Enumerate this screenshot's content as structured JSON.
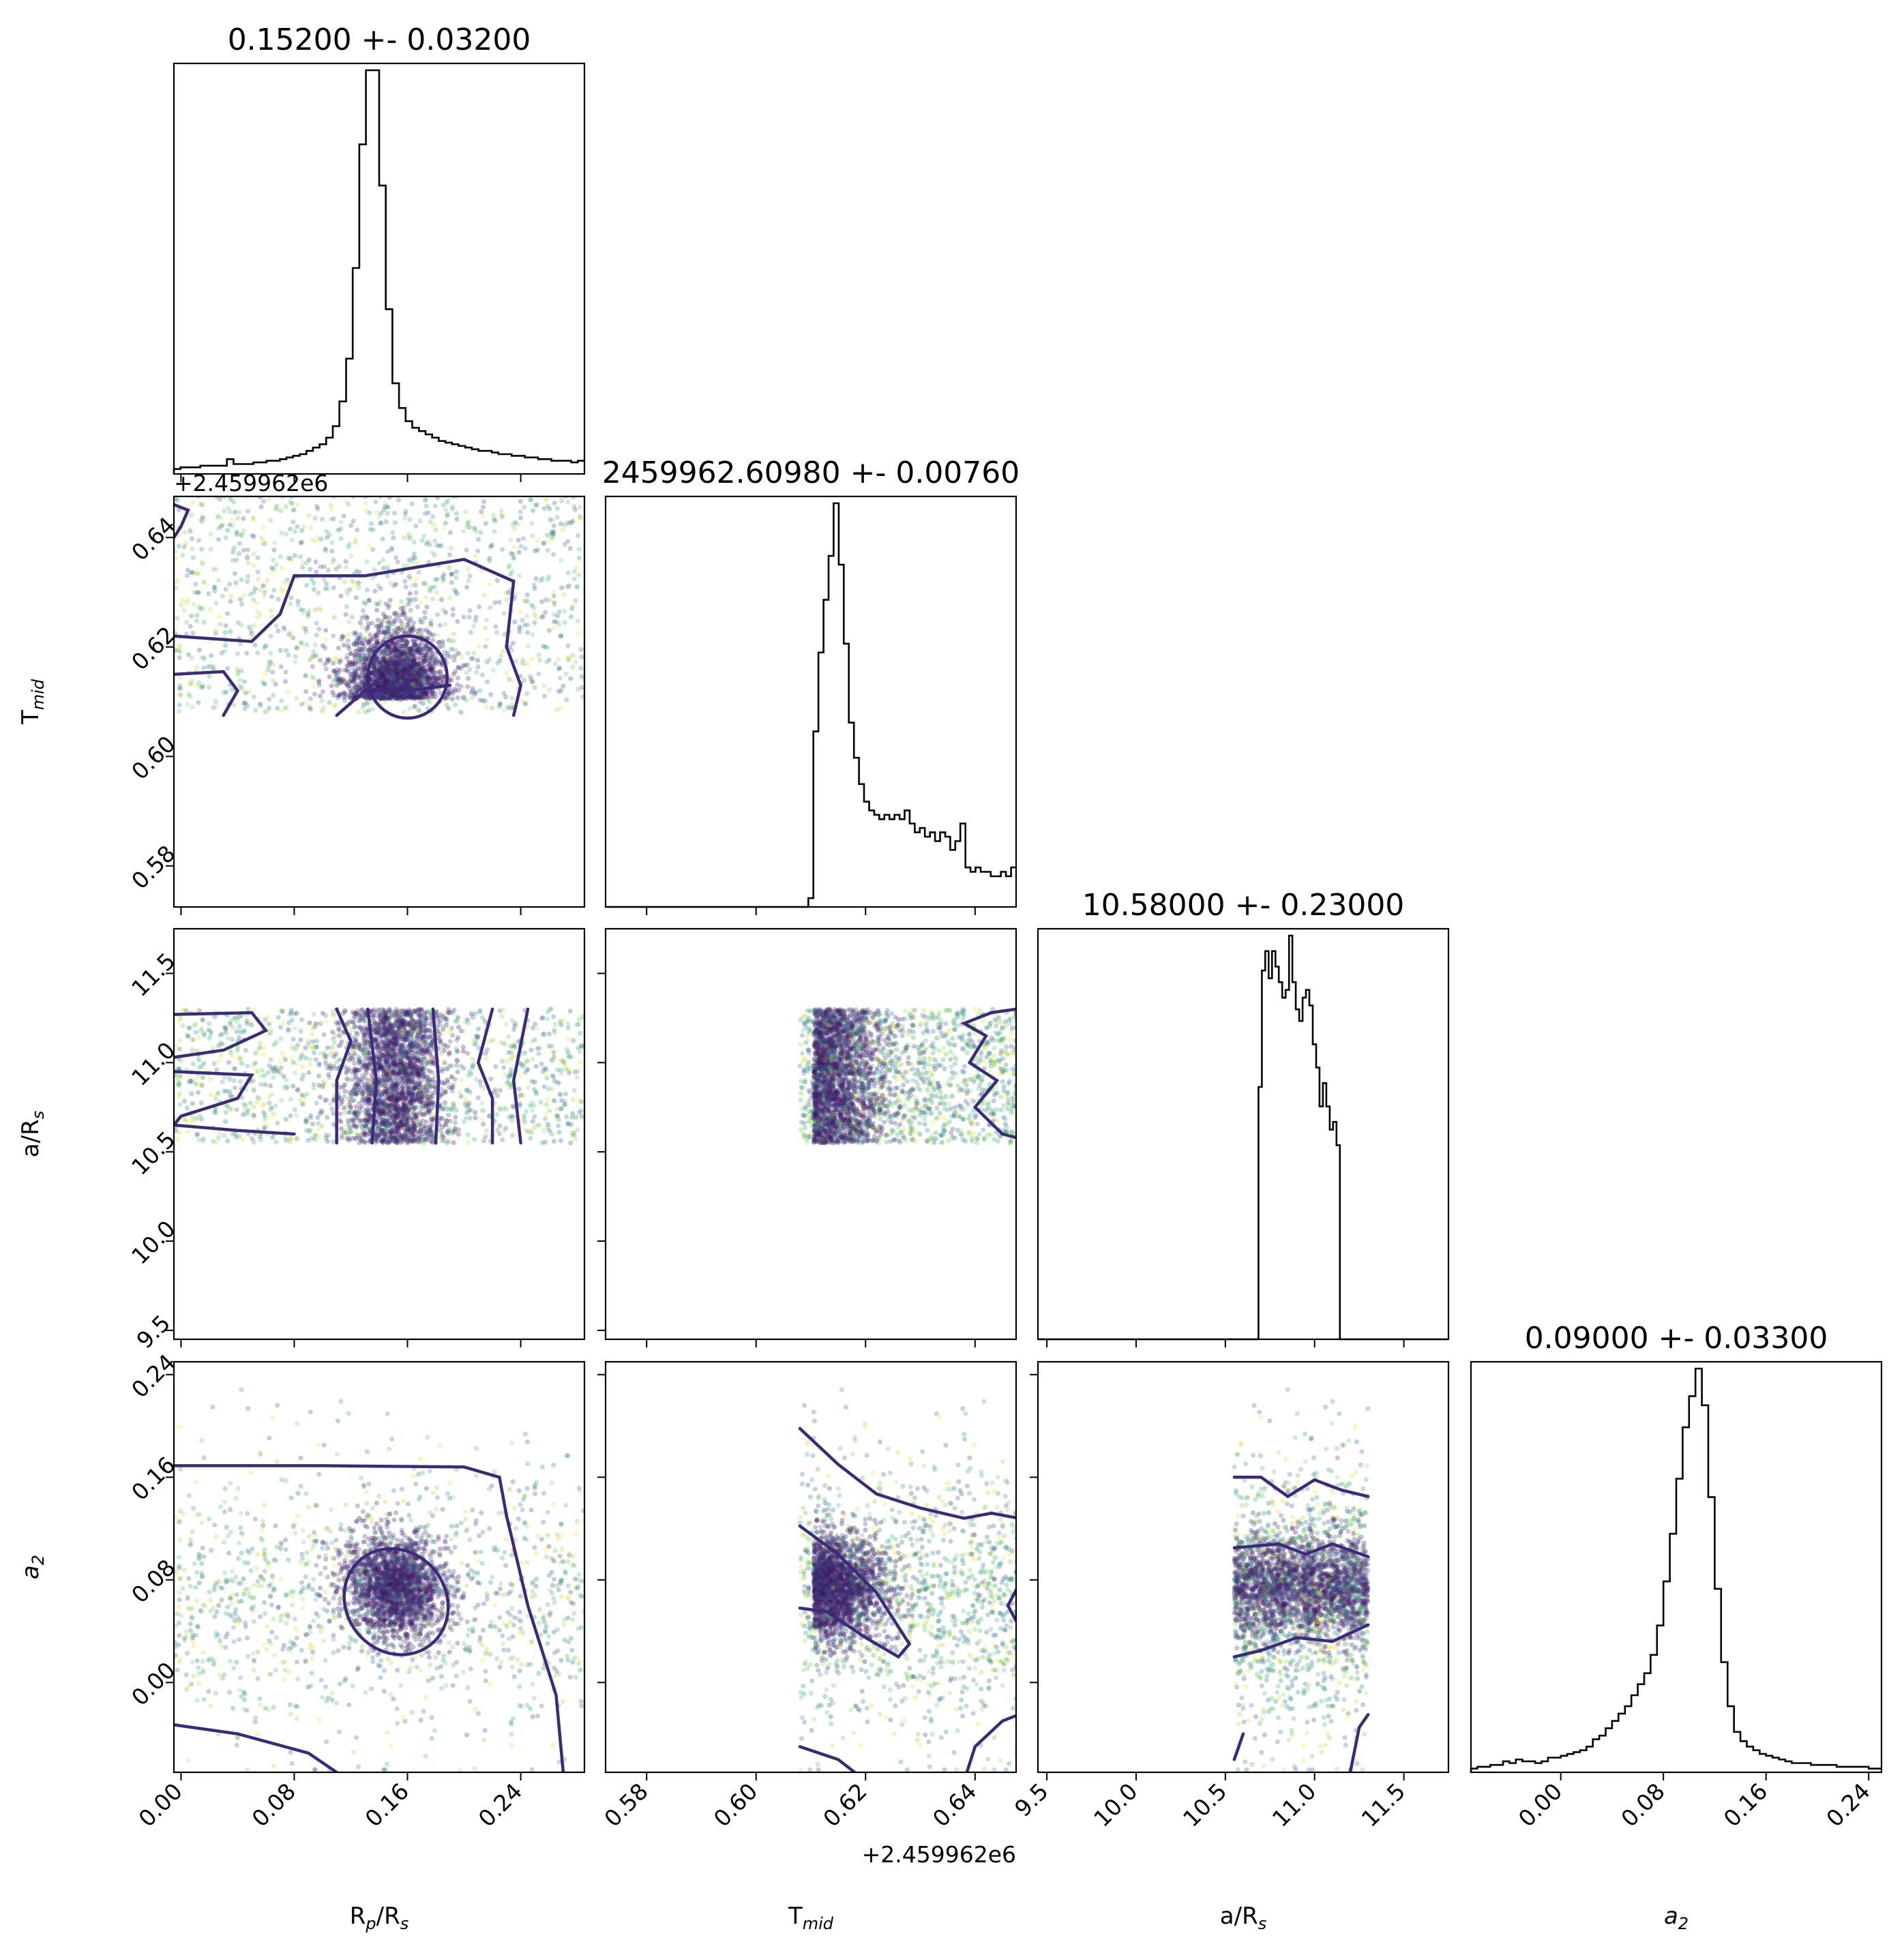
{
  "chart_data": {
    "type": "corner",
    "parameters": [
      {
        "key": "rprs",
        "label": "R",
        "sub1": "p",
        "mid": "/R",
        "sub2": "s",
        "title": "0.15200 +- 0.03200",
        "range": [
          -0.005,
          0.285
        ],
        "ticks": [
          "0.00",
          "0.08",
          "0.16",
          "0.24"
        ],
        "tick_values": [
          0.0,
          0.08,
          0.16,
          0.24
        ]
      },
      {
        "key": "tmid",
        "label": "T",
        "sub1": "mid",
        "mid": "",
        "sub2": "",
        "title": "2459962.60980 +- 0.00760",
        "range": [
          0.5725,
          0.6475
        ],
        "ticks": [
          "0.58",
          "0.60",
          "0.62",
          "0.64"
        ],
        "tick_values": [
          0.58,
          0.6,
          0.62,
          0.64
        ],
        "offset": "+2.459962e6"
      },
      {
        "key": "ars",
        "label": "a/R",
        "sub1": "",
        "mid": "",
        "sub2": "s",
        "title": "10.58000 +- 0.23000",
        "range": [
          9.45,
          11.75
        ],
        "ticks": [
          "9.5",
          "10.0",
          "10.5",
          "11.0",
          "11.5"
        ],
        "tick_values": [
          9.5,
          10.0,
          10.5,
          11.0,
          11.5
        ]
      },
      {
        "key": "a2",
        "label": "a",
        "sub1": "2",
        "mid": "",
        "sub2": "",
        "italic": true,
        "title": "0.09000 +- 0.03300",
        "range": [
          -0.07,
          0.25
        ],
        "ticks": [
          "0.00",
          "0.08",
          "0.16",
          "0.24"
        ],
        "tick_values": [
          0.0,
          0.08,
          0.16,
          0.24
        ]
      }
    ],
    "histograms": {
      "rprs": [
        3,
        4,
        4,
        4,
        5,
        5,
        5,
        5,
        9,
        6,
        6,
        6,
        7,
        7,
        8,
        8,
        9,
        10,
        11,
        12,
        14,
        16,
        18,
        22,
        29,
        44,
        70,
        125,
        200,
        245,
        245,
        175,
        100,
        55,
        40,
        32,
        28,
        26,
        24,
        22,
        20,
        19,
        18,
        17,
        16,
        15,
        14,
        14,
        13,
        12,
        12,
        11,
        11,
        10,
        10,
        9,
        9,
        8,
        8,
        8,
        7,
        8
      ],
      "tmid": [
        0,
        0,
        0,
        0,
        0,
        0,
        0,
        0,
        0,
        0,
        0,
        0,
        0,
        0,
        0,
        0,
        0,
        0,
        0,
        0,
        0,
        0,
        0,
        0,
        0,
        0,
        0,
        0,
        0,
        0,
        0,
        0,
        0,
        0,
        0,
        0,
        0,
        0,
        0,
        0,
        2,
        40,
        58,
        70,
        80,
        92,
        78,
        60,
        42,
        34,
        28,
        24,
        22,
        21,
        20,
        21,
        20,
        21,
        20,
        22,
        19,
        17,
        18,
        16,
        17,
        15,
        17,
        16,
        13,
        15,
        19,
        9,
        8,
        9,
        8,
        8,
        7,
        7,
        8,
        7,
        9
      ],
      "ars": [
        0,
        0,
        0,
        0,
        0,
        0,
        0,
        0,
        0,
        0,
        0,
        0,
        0,
        0,
        0,
        0,
        0,
        0,
        0,
        0,
        0,
        0,
        0,
        0,
        0,
        0,
        0,
        0,
        0,
        0,
        0,
        0,
        0,
        0,
        0,
        0,
        0,
        0,
        0,
        0,
        0,
        0,
        0,
        0,
        0,
        0,
        0,
        0,
        0,
        0,
        0,
        0,
        0,
        0,
        0,
        0,
        0,
        0,
        0,
        0,
        0,
        0,
        0,
        0,
        0,
        65,
        95,
        100,
        93,
        100,
        96,
        92,
        88,
        90,
        104,
        92,
        85,
        82,
        88,
        90,
        86,
        76,
        70,
        60,
        66,
        60,
        54,
        56,
        50,
        0,
        0,
        0,
        0,
        0,
        0,
        0,
        0,
        0,
        0,
        0,
        0,
        0,
        0,
        0,
        0,
        0,
        0,
        0,
        0,
        0,
        0,
        0,
        0,
        0,
        0,
        0,
        0,
        0,
        0,
        0,
        0
      ],
      "a2": [
        2,
        3,
        3,
        4,
        4,
        6,
        5,
        7,
        6,
        6,
        5,
        6,
        8,
        8,
        9,
        10,
        11,
        12,
        14,
        18,
        20,
        24,
        28,
        32,
        36,
        42,
        48,
        54,
        64,
        80,
        104,
        130,
        160,
        188,
        205,
        220,
        200,
        150,
        100,
        60,
        36,
        22,
        17,
        14,
        12,
        10,
        9,
        8,
        7,
        6,
        5,
        5,
        5,
        4,
        4,
        4,
        4,
        3,
        3,
        3,
        3,
        3,
        2,
        2
      ]
    }
  }
}
